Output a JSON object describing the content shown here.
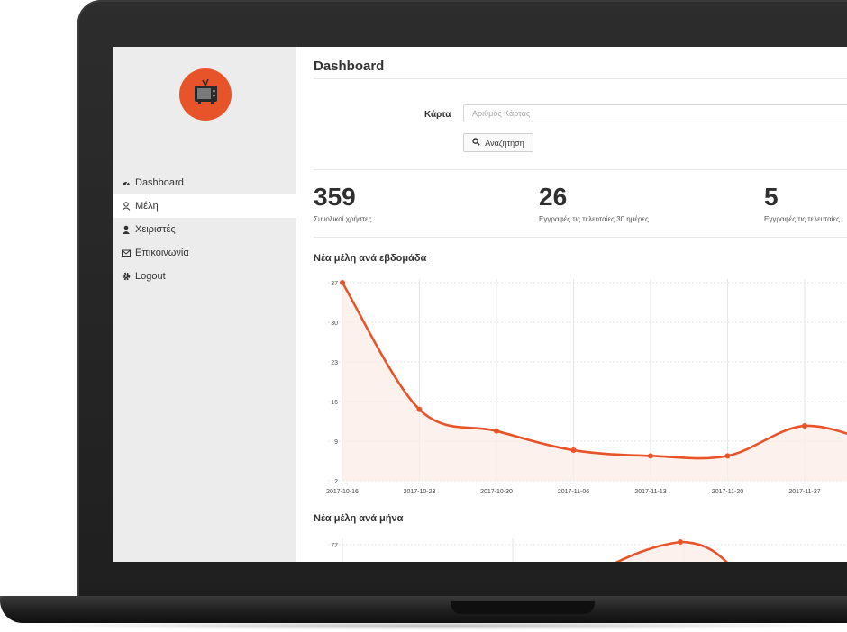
{
  "sidebar": {
    "logo_icon": "tv-icon",
    "items": [
      {
        "label": "Dashboard",
        "icon": "dashboard-icon",
        "active": false
      },
      {
        "label": "Μέλη",
        "icon": "user-icon",
        "active": true
      },
      {
        "label": "Χειριστές",
        "icon": "user-solid-icon",
        "active": false
      },
      {
        "label": "Επικοινωνία",
        "icon": "envelope-icon",
        "active": false
      },
      {
        "label": "Logout",
        "icon": "gear-icon",
        "active": false
      }
    ]
  },
  "header": {
    "title": "Dashboard"
  },
  "search": {
    "label": "Κάρτα",
    "placeholder": "Αριθμός Κάρτας",
    "button_label": "Αναζήτηση"
  },
  "stats": [
    {
      "value": "359",
      "label": "Συνολικοί χρήστες"
    },
    {
      "value": "26",
      "label": "Εγγραφές τις τελευταίες 30 ημέρες"
    },
    {
      "value": "5",
      "label": "Εγγραφές τις τελευταίες"
    }
  ],
  "colors": {
    "accent": "#e8542a",
    "fill": "#fdeee9"
  },
  "chart_data": [
    {
      "type": "area",
      "title": "Νέα μέλη ανά εβδομάδα",
      "x": [
        "2017-10-16",
        "2017-10-23",
        "2017-10-30",
        "2017-11-06",
        "2017-11-13",
        "2017-11-20",
        "2017-11-27"
      ],
      "values": [
        37,
        14.6,
        10.8,
        7.4,
        6.4,
        6.4,
        11.7
      ],
      "yticks": [
        2,
        9,
        16,
        23,
        30,
        37
      ],
      "ylim": [
        2,
        37
      ],
      "grid": true
    },
    {
      "type": "area",
      "title": "Νέα μέλη ανά μήνα",
      "yticks": [
        77
      ],
      "values": [
        77
      ]
    }
  ]
}
